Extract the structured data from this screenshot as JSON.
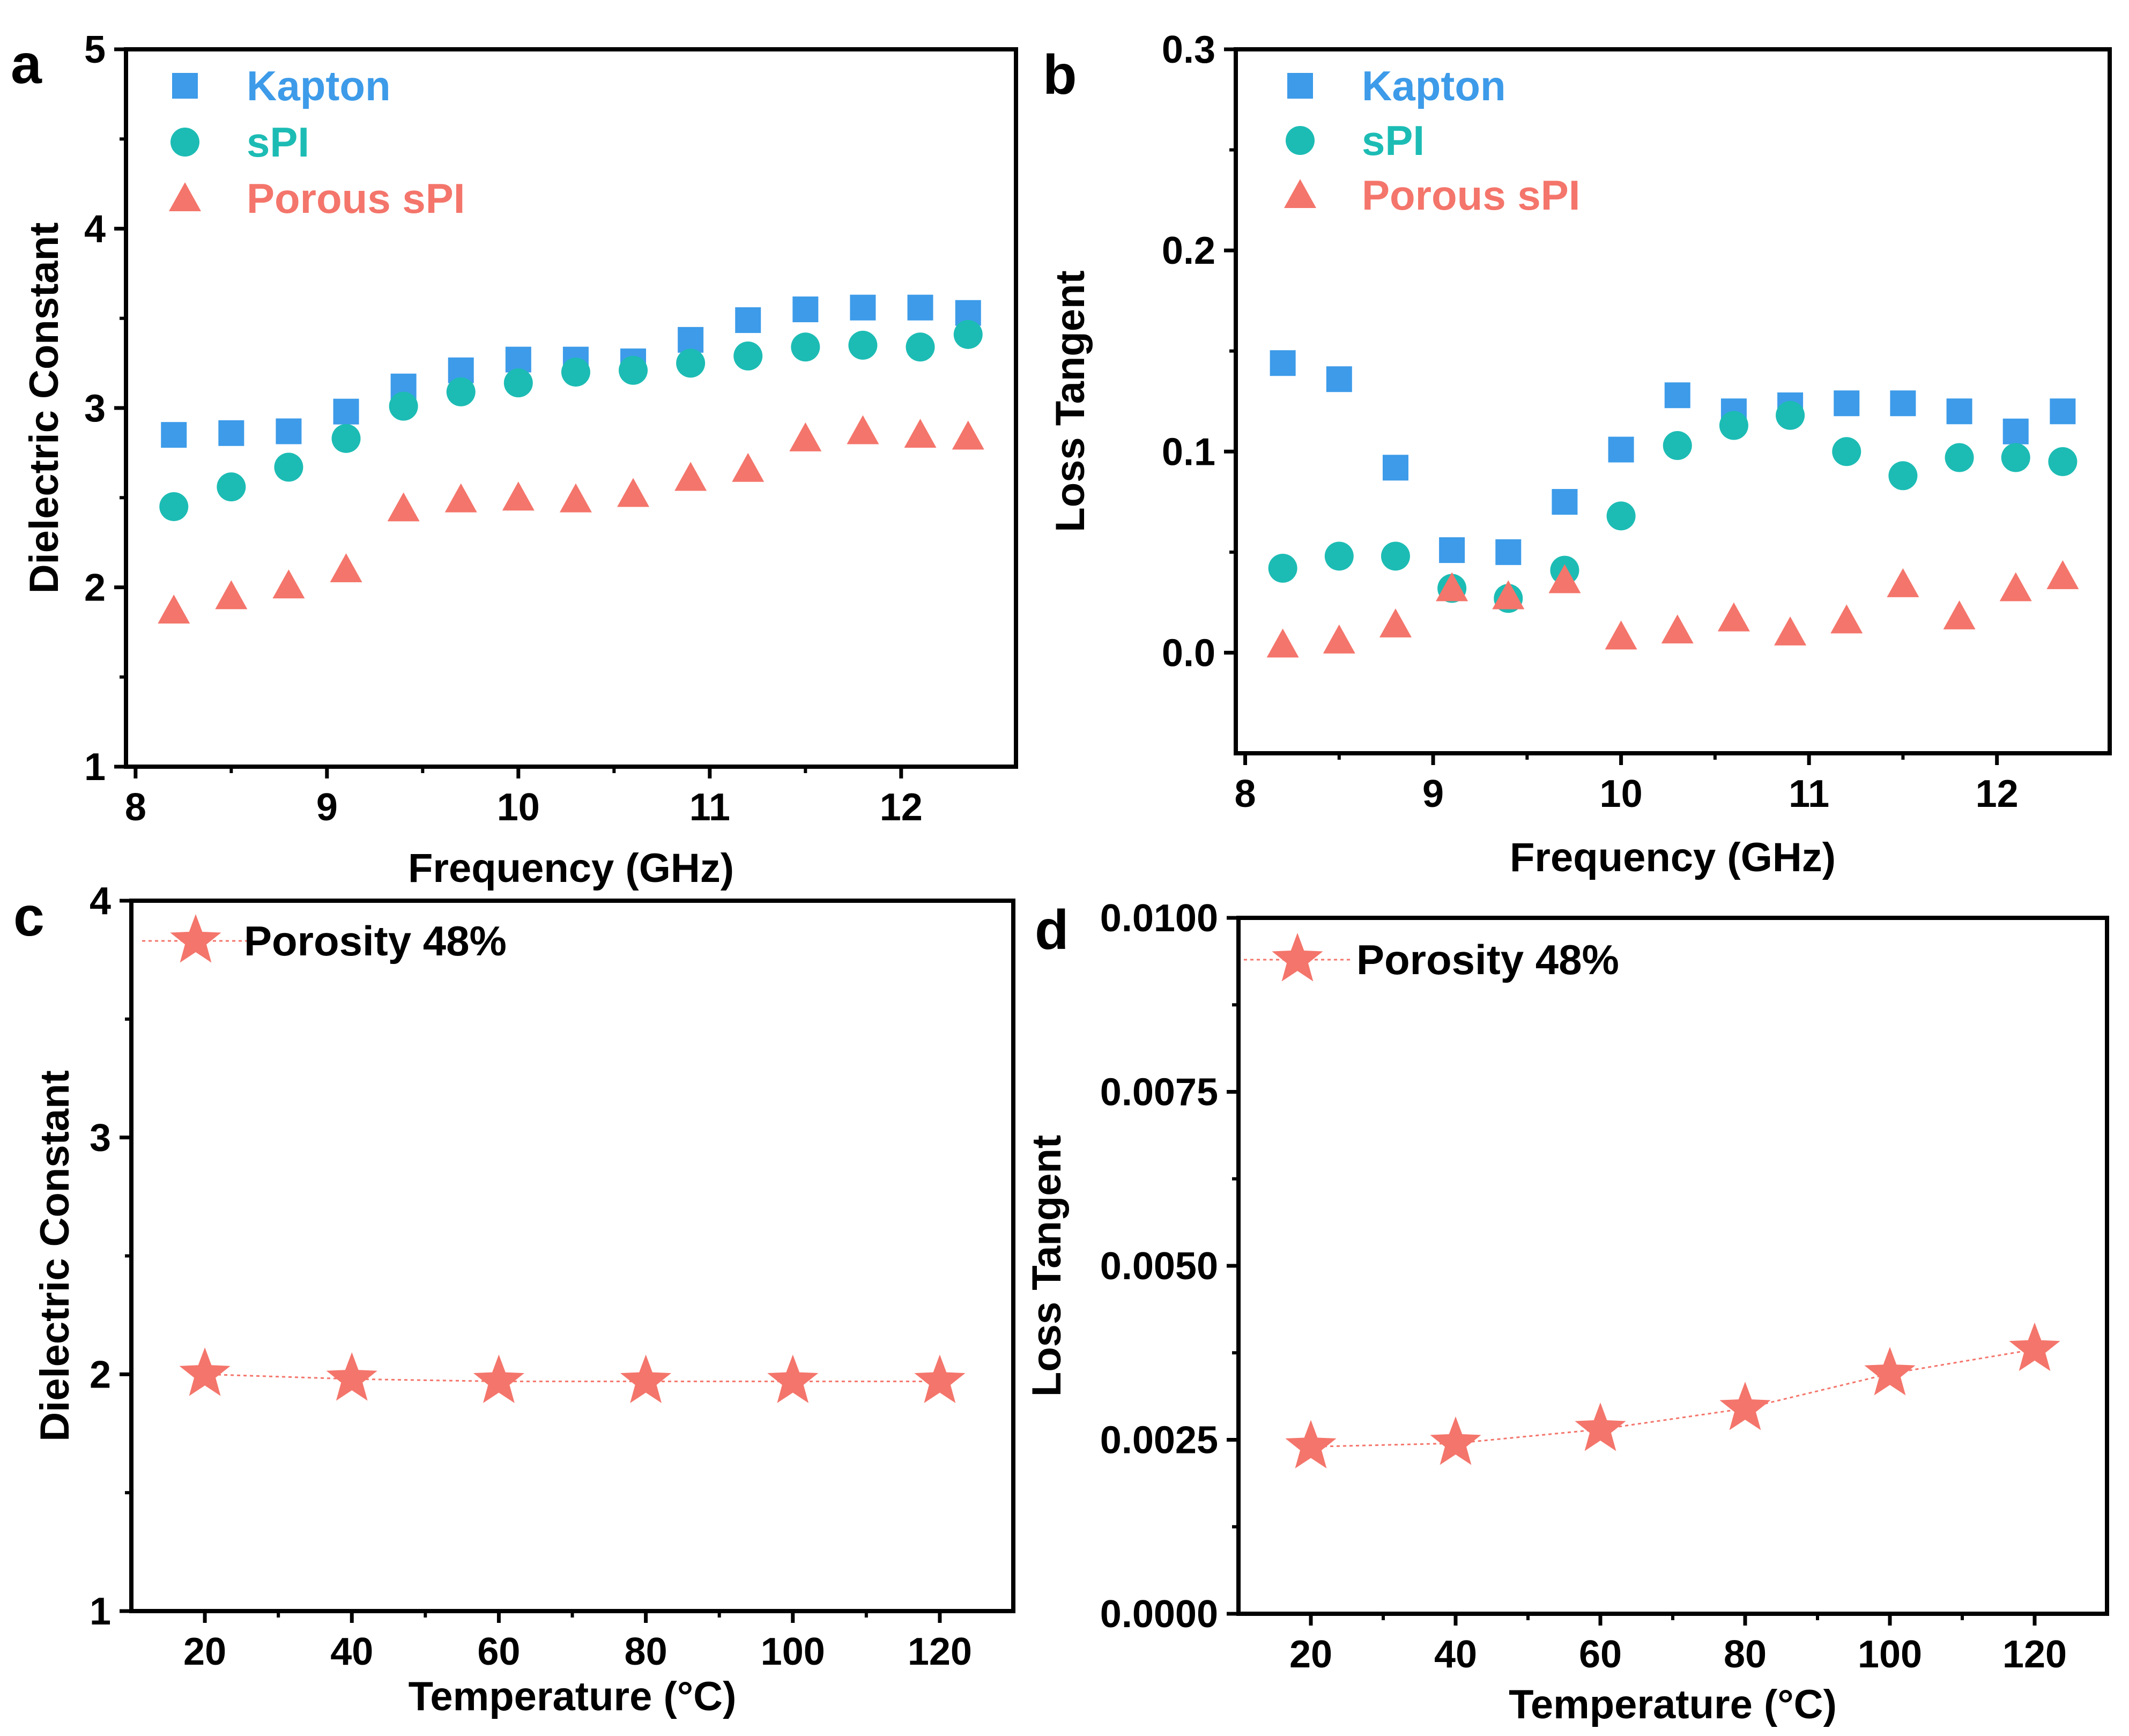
{
  "colors": {
    "kapton": "#3d9be9",
    "spi": "#1cbcb4",
    "porous": "#f4756b",
    "frame": "#000000"
  },
  "chart_data": [
    {
      "panel": "a",
      "type": "scatter",
      "xlabel": "Frequency (GHz)",
      "ylabel": "Dielectric Constant",
      "xlim": [
        7.95,
        12.6
      ],
      "ylim": [
        1,
        5
      ],
      "xticks": [
        "8",
        "9",
        "10",
        "11",
        "12"
      ],
      "yticks": [
        "1",
        "2",
        "3",
        "4",
        "5"
      ],
      "x": [
        8.2,
        8.5,
        8.8,
        9.1,
        9.4,
        9.7,
        10.0,
        10.3,
        10.6,
        10.9,
        11.2,
        11.5,
        11.8,
        12.1,
        12.35
      ],
      "series": [
        {
          "name": "Kapton",
          "marker": "square",
          "values": [
            2.85,
            2.86,
            2.87,
            2.98,
            3.12,
            3.21,
            3.27,
            3.27,
            3.26,
            3.38,
            3.49,
            3.55,
            3.56,
            3.56,
            3.53
          ]
        },
        {
          "name": "sPI",
          "marker": "circle",
          "values": [
            2.45,
            2.56,
            2.67,
            2.83,
            3.01,
            3.09,
            3.14,
            3.2,
            3.21,
            3.25,
            3.29,
            3.34,
            3.35,
            3.34,
            3.41
          ]
        },
        {
          "name": "Porous sPI",
          "marker": "triangle",
          "values": [
            1.87,
            1.95,
            2.01,
            2.1,
            2.44,
            2.49,
            2.5,
            2.49,
            2.52,
            2.61,
            2.66,
            2.83,
            2.87,
            2.85,
            2.84
          ]
        }
      ]
    },
    {
      "panel": "b",
      "type": "scatter",
      "xlabel": "Frequency (GHz)",
      "ylabel": "Loss Tangent",
      "xlim": [
        7.95,
        12.6
      ],
      "ylim": [
        -0.05,
        0.3
      ],
      "xticks": [
        "8",
        "9",
        "10",
        "11",
        "12"
      ],
      "yticks": [
        "0.0",
        "0.1",
        "0.2",
        "0.3"
      ],
      "x": [
        8.2,
        8.5,
        8.8,
        9.1,
        9.4,
        9.7,
        10.0,
        10.3,
        10.6,
        10.9,
        11.2,
        11.5,
        11.8,
        12.1,
        12.35
      ],
      "series": [
        {
          "name": "Kapton",
          "marker": "square",
          "values": [
            0.144,
            0.136,
            0.092,
            0.051,
            0.05,
            0.075,
            0.101,
            0.128,
            0.12,
            0.123,
            0.124,
            0.124,
            0.12,
            0.11,
            0.12
          ]
        },
        {
          "name": "sPI",
          "marker": "circle",
          "values": [
            0.042,
            0.048,
            0.048,
            0.032,
            0.027,
            0.041,
            0.068,
            0.103,
            0.113,
            0.118,
            0.1,
            0.088,
            0.097,
            0.097,
            0.095
          ]
        },
        {
          "name": "Porous sPI",
          "marker": "triangle",
          "values": [
            0.004,
            0.006,
            0.014,
            0.032,
            0.028,
            0.036,
            0.008,
            0.011,
            0.017,
            0.01,
            0.016,
            0.034,
            0.018,
            0.032,
            0.038
          ]
        }
      ]
    },
    {
      "panel": "c",
      "type": "line",
      "xlabel": "Temperature (°C)",
      "ylabel": "Dielectric Constant",
      "xlim": [
        10,
        130
      ],
      "ylim": [
        1,
        4
      ],
      "xticks": [
        "20",
        "40",
        "60",
        "80",
        "100",
        "120"
      ],
      "yticks": [
        "1",
        "2",
        "3",
        "4"
      ],
      "x": [
        20,
        40,
        60,
        80,
        100,
        120
      ],
      "series": [
        {
          "name": "Porosity 48%",
          "marker": "star",
          "values": [
            2.0,
            1.98,
            1.97,
            1.97,
            1.97,
            1.97
          ]
        }
      ]
    },
    {
      "panel": "d",
      "type": "line",
      "xlabel": "Temperature (°C)",
      "ylabel": "Loss Tangent",
      "xlim": [
        10,
        130
      ],
      "ylim": [
        0,
        0.01
      ],
      "xticks": [
        "20",
        "40",
        "60",
        "80",
        "100",
        "120"
      ],
      "yticks": [
        "0.0000",
        "0.0025",
        "0.0050",
        "0.0075",
        "0.0100"
      ],
      "x": [
        20,
        40,
        60,
        80,
        100,
        120
      ],
      "series": [
        {
          "name": "Porosity 48%",
          "marker": "star",
          "values": [
            0.0024,
            0.00245,
            0.00265,
            0.00295,
            0.00345,
            0.0038
          ]
        }
      ]
    }
  ]
}
